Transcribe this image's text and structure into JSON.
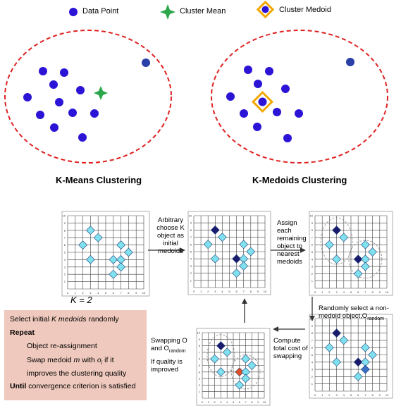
{
  "legend": {
    "data_point": "Data Point",
    "cluster_mean": "Cluster Mean",
    "cluster_medoid": "Cluster Medoid"
  },
  "titles": {
    "kmeans": "K-Means Clustering",
    "kmedoids": "K-Medoids Clustering"
  },
  "colors": {
    "data_point": "#2b14d6",
    "outlier": "#2a3fa8",
    "cluster_mean": "#2ca64a",
    "medoid_frame": "#f2a800",
    "ellipse": "#e02020",
    "diamond_light": "#7fe0f0",
    "diamond_dark": "#1a1a6e",
    "algorithm_box": "#efc9bd"
  },
  "steps": {
    "k_value": "K = 2",
    "step1": [
      "Arbitrary",
      "choose K",
      "object as",
      "initial",
      "medoids"
    ],
    "step2": [
      "Assign",
      "each",
      "remaining",
      "object to",
      "nearest",
      "medoids"
    ],
    "step3": [
      "Randomly select a non-",
      "medoid object,O",
      "random"
    ],
    "step4": [
      "Compute",
      "total cost of",
      "swapping"
    ],
    "step5": [
      "Swapping O",
      "and O",
      "random",
      "If quality is",
      "improved"
    ]
  },
  "algorithm": {
    "line1_a": "Select initial ",
    "line1_b": "K medoids",
    "line1_c": " randomly",
    "repeat": "Repeat",
    "reassign": "Object re-assignment",
    "swap_a": "Swap medoid ",
    "swap_m": "m",
    "swap_b": " with ",
    "swap_o": "o",
    "swap_i": "i",
    "swap_c": " if it",
    "swap_line2": "improves the clustering quality",
    "until": "Until",
    "until_rest": " convergence criterion is satisfied"
  },
  "grid_axis": {
    "x_ticks": [
      "0",
      "1",
      "2",
      "3",
      "4",
      "5",
      "6",
      "7",
      "8",
      "9",
      "10"
    ],
    "y_ticks": [
      "1",
      "2",
      "3",
      "4",
      "5",
      "6",
      "7",
      "8",
      "9",
      "10"
    ]
  }
}
